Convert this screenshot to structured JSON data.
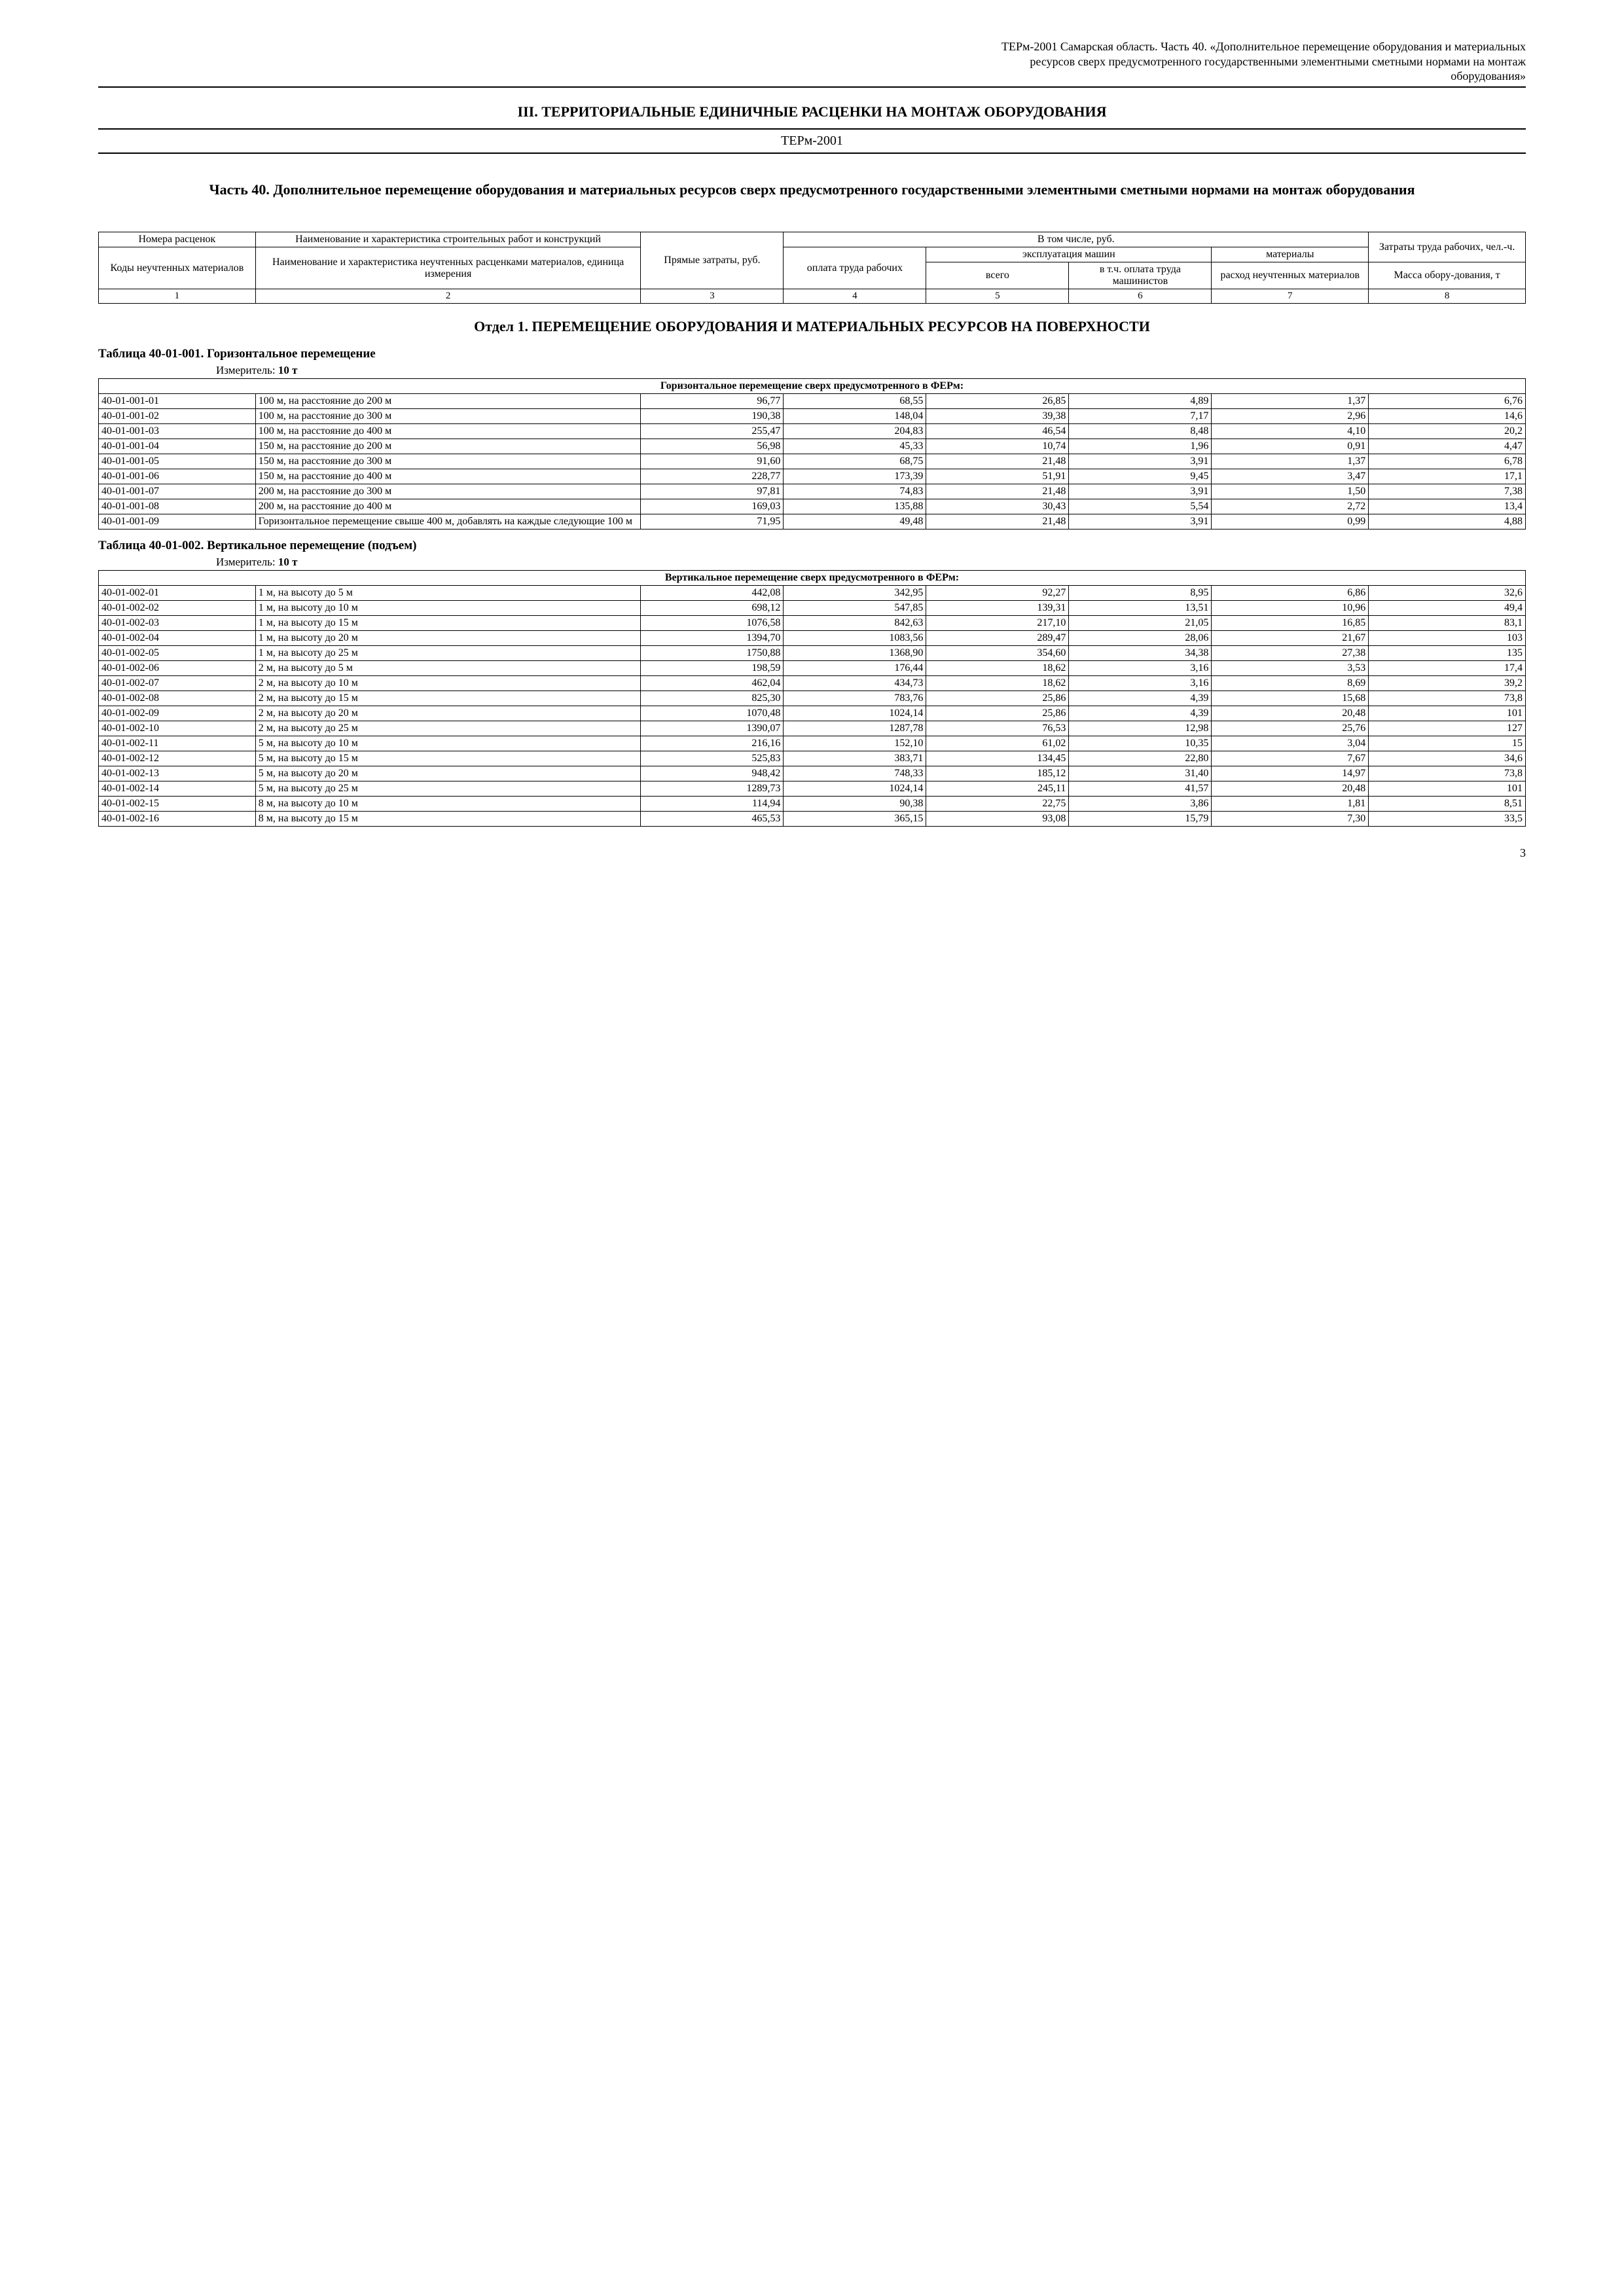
{
  "header": {
    "line1": "ТЕРм-2001 Самарская область. Часть 40. «Дополнительное перемещение оборудования и материальных",
    "line2": "ресурсов сверх предусмотренного государственными элементными сметными нормами на монтаж",
    "line3": "оборудования»"
  },
  "main_title": "III. ТЕРРИТОРИАЛЬНЫЕ ЕДИНИЧНЫЕ РАСЦЕНКИ НА МОНТАЖ ОБОРУДОВАНИЯ",
  "rule_label": "ТЕРм-2001",
  "part_title": "Часть 40. Дополнительное перемещение оборудования и материальных ресурсов сверх предусмотренного государственными элементными сметными нормами на монтаж оборудования",
  "header_table": {
    "r1c1": "Номера расценок",
    "r1c2": "Наименование и характеристика строительных работ и конструкций",
    "r1c3": "Прямые затраты, руб.",
    "r1c4": "В том числе, руб.",
    "r1c8a": "Затраты труда рабочих, чел.-ч.",
    "r2c1": "Коды неучтенных материалов",
    "r2c2": "Наименование и характеристика неучтенных расценками материалов, единица измерения",
    "r2c4": "оплата труда рабочих",
    "r2c5": "эксплуатация машин",
    "r2c7": "материалы",
    "r3c5": "всего",
    "r3c6": "в т.ч. оплата труда машинистов",
    "r3c7": "расход неучтенных материалов",
    "r3c8": "Масса обору-дования, т",
    "nums": [
      "1",
      "2",
      "3",
      "4",
      "5",
      "6",
      "7",
      "8"
    ]
  },
  "section1_title": "Отдел 1. ПЕРЕМЕЩЕНИЕ ОБОРУДОВАНИЯ И МАТЕРИАЛЬНЫХ РЕСУРСОВ НА ПОВЕРХНОСТИ",
  "table1": {
    "title": "Таблица 40-01-001. Горизонтальное перемещение",
    "measure_label": "Измеритель:",
    "measure_value": "10 т",
    "subhead": "Горизонтальное перемещение сверх предусмотренного в ФЕРм:",
    "rows": [
      {
        "code": "40-01-001-01",
        "desc": "100 м, на расстояние до 200 м",
        "v": [
          "96,77",
          "68,55",
          "26,85",
          "4,89",
          "1,37",
          "6,76"
        ]
      },
      {
        "code": "40-01-001-02",
        "desc": "100 м, на расстояние до 300 м",
        "v": [
          "190,38",
          "148,04",
          "39,38",
          "7,17",
          "2,96",
          "14,6"
        ]
      },
      {
        "code": "40-01-001-03",
        "desc": "100 м, на расстояние до 400 м",
        "v": [
          "255,47",
          "204,83",
          "46,54",
          "8,48",
          "4,10",
          "20,2"
        ]
      },
      {
        "code": "40-01-001-04",
        "desc": "150 м, на расстояние до 200 м",
        "v": [
          "56,98",
          "45,33",
          "10,74",
          "1,96",
          "0,91",
          "4,47"
        ]
      },
      {
        "code": "40-01-001-05",
        "desc": "150 м, на расстояние до 300 м",
        "v": [
          "91,60",
          "68,75",
          "21,48",
          "3,91",
          "1,37",
          "6,78"
        ]
      },
      {
        "code": "40-01-001-06",
        "desc": "150 м, на расстояние до 400 м",
        "v": [
          "228,77",
          "173,39",
          "51,91",
          "9,45",
          "3,47",
          "17,1"
        ]
      },
      {
        "code": "40-01-001-07",
        "desc": "200 м, на расстояние до 300 м",
        "v": [
          "97,81",
          "74,83",
          "21,48",
          "3,91",
          "1,50",
          "7,38"
        ]
      },
      {
        "code": "40-01-001-08",
        "desc": "200 м, на расстояние до 400 м",
        "v": [
          "169,03",
          "135,88",
          "30,43",
          "5,54",
          "2,72",
          "13,4"
        ]
      },
      {
        "code": "40-01-001-09",
        "desc": "Горизонтальное перемещение свыше 400 м, добавлять на каждые следующие 100 м",
        "v": [
          "71,95",
          "49,48",
          "21,48",
          "3,91",
          "0,99",
          "4,88"
        ]
      }
    ]
  },
  "table2": {
    "title": "Таблица 40-01-002. Вертикальное перемещение (подъем)",
    "measure_label": "Измеритель:",
    "measure_value": "10 т",
    "subhead": "Вертикальное перемещение сверх предусмотренного в ФЕРм:",
    "rows": [
      {
        "code": "40-01-002-01",
        "desc": "1 м, на высоту до 5 м",
        "v": [
          "442,08",
          "342,95",
          "92,27",
          "8,95",
          "6,86",
          "32,6"
        ]
      },
      {
        "code": "40-01-002-02",
        "desc": "1 м, на высоту до 10 м",
        "v": [
          "698,12",
          "547,85",
          "139,31",
          "13,51",
          "10,96",
          "49,4"
        ]
      },
      {
        "code": "40-01-002-03",
        "desc": "1 м, на высоту до 15 м",
        "v": [
          "1076,58",
          "842,63",
          "217,10",
          "21,05",
          "16,85",
          "83,1"
        ]
      },
      {
        "code": "40-01-002-04",
        "desc": "1 м, на высоту до 20 м",
        "v": [
          "1394,70",
          "1083,56",
          "289,47",
          "28,06",
          "21,67",
          "103"
        ]
      },
      {
        "code": "40-01-002-05",
        "desc": "1 м, на высоту до 25 м",
        "v": [
          "1750,88",
          "1368,90",
          "354,60",
          "34,38",
          "27,38",
          "135"
        ]
      },
      {
        "code": "40-01-002-06",
        "desc": "2 м, на высоту до 5 м",
        "v": [
          "198,59",
          "176,44",
          "18,62",
          "3,16",
          "3,53",
          "17,4"
        ]
      },
      {
        "code": "40-01-002-07",
        "desc": "2 м, на высоту до 10 м",
        "v": [
          "462,04",
          "434,73",
          "18,62",
          "3,16",
          "8,69",
          "39,2"
        ]
      },
      {
        "code": "40-01-002-08",
        "desc": "2 м, на высоту до 15 м",
        "v": [
          "825,30",
          "783,76",
          "25,86",
          "4,39",
          "15,68",
          "73,8"
        ]
      },
      {
        "code": "40-01-002-09",
        "desc": "2 м, на высоту до 20 м",
        "v": [
          "1070,48",
          "1024,14",
          "25,86",
          "4,39",
          "20,48",
          "101"
        ]
      },
      {
        "code": "40-01-002-10",
        "desc": "2 м, на высоту до 25 м",
        "v": [
          "1390,07",
          "1287,78",
          "76,53",
          "12,98",
          "25,76",
          "127"
        ]
      },
      {
        "code": "40-01-002-11",
        "desc": "5 м, на высоту до 10 м",
        "v": [
          "216,16",
          "152,10",
          "61,02",
          "10,35",
          "3,04",
          "15"
        ]
      },
      {
        "code": "40-01-002-12",
        "desc": "5 м, на высоту до 15 м",
        "v": [
          "525,83",
          "383,71",
          "134,45",
          "22,80",
          "7,67",
          "34,6"
        ]
      },
      {
        "code": "40-01-002-13",
        "desc": "5 м, на высоту до 20 м",
        "v": [
          "948,42",
          "748,33",
          "185,12",
          "31,40",
          "14,97",
          "73,8"
        ]
      },
      {
        "code": "40-01-002-14",
        "desc": "5 м, на высоту до 25 м",
        "v": [
          "1289,73",
          "1024,14",
          "245,11",
          "41,57",
          "20,48",
          "101"
        ]
      },
      {
        "code": "40-01-002-15",
        "desc": "8 м, на высоту до 10 м",
        "v": [
          "114,94",
          "90,38",
          "22,75",
          "3,86",
          "1,81",
          "8,51"
        ]
      },
      {
        "code": "40-01-002-16",
        "desc": "8 м, на высоту до 15 м",
        "v": [
          "465,53",
          "365,15",
          "93,08",
          "15,79",
          "7,30",
          "33,5"
        ]
      }
    ]
  },
  "page_number": "3"
}
